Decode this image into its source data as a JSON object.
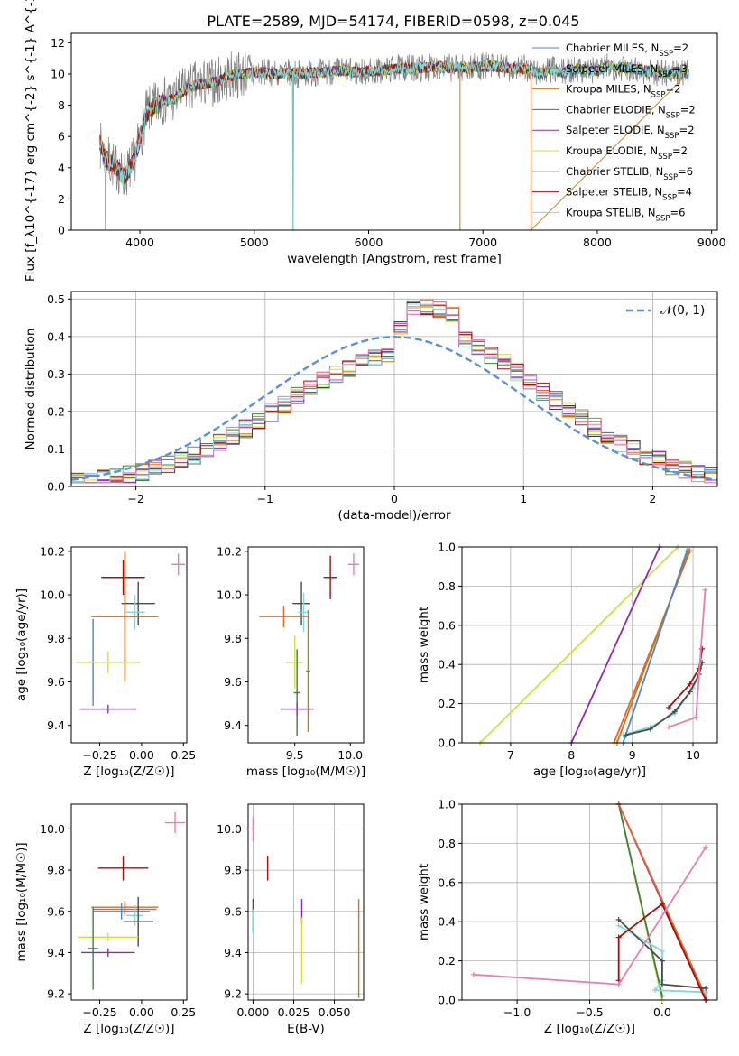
{
  "figure": {
    "title": "PLATE=2589, MJD=54174, FIBERID=0598, z=0.045"
  },
  "colors": {
    "Chabrier MILES": "#4f86c6",
    "Salpeter MILES": "#e26a2c",
    "Kroupa MILES": "#c27a1e",
    "Chabrier ELODIE": "#3f7f3f",
    "Salpeter ELODIE": "#8e2ab0",
    "Kroupa ELODIE": "#cfe03a",
    "Chabrier STELIB": "#4a4a4a",
    "Salpeter STELIB": "#a50f0f",
    "Kroupa STELIB": "#7fd8dc",
    "pink": "#e57fb3",
    "gray_data": "#7f7f7f",
    "normal_curve": "#5b8fd6"
  },
  "chart_data": [
    {
      "id": "spectrum",
      "type": "line",
      "xlabel": "wavelength [Angstrom, rest frame]",
      "ylabel": "Flux [f_λ10^{-17} erg cm^{-2} s^{-1} A^{-1}]",
      "xlim": [
        3400,
        9050
      ],
      "ylim": [
        0,
        12.6
      ],
      "xticks": [
        4000,
        5000,
        6000,
        7000,
        8000,
        9000
      ],
      "yticks": [
        0,
        2,
        4,
        6,
        8,
        10,
        12
      ],
      "legend": [
        {
          "label": "Chabrier MILES, N",
          "sub": "SSP",
          "tail": "=2",
          "color": "#4f86c6"
        },
        {
          "label": "Salpeter MILES, N",
          "sub": "SSP",
          "tail": "=3",
          "color": "#e26a2c"
        },
        {
          "label": "Kroupa MILES, N",
          "sub": "SSP",
          "tail": "=2",
          "color": "#c27a1e"
        },
        {
          "label": "Chabrier ELODIE, N",
          "sub": "SSP",
          "tail": "=2",
          "color": "#3f7f3f"
        },
        {
          "label": "Salpeter ELODIE, N",
          "sub": "SSP",
          "tail": "=2",
          "color": "#8e2ab0"
        },
        {
          "label": "Kroupa ELODIE, N",
          "sub": "SSP",
          "tail": "=2",
          "color": "#cfe03a"
        },
        {
          "label": "Chabrier STELIB, N",
          "sub": "SSP",
          "tail": "=6",
          "color": "#4a4a4a"
        },
        {
          "label": "Salpeter STELIB, N",
          "sub": "SSP",
          "tail": "=4",
          "color": "#a50f0f"
        },
        {
          "label": "Kroupa STELIB, N",
          "sub": "SSP",
          "tail": "=6",
          "color": "#7fd8dc"
        }
      ],
      "continuum": [
        [
          3650,
          5.5
        ],
        [
          3700,
          4.6
        ],
        [
          3750,
          4.3
        ],
        [
          3800,
          4.0
        ],
        [
          3850,
          3.4
        ],
        [
          3900,
          3.8
        ],
        [
          3950,
          4.5
        ],
        [
          4000,
          5.8
        ],
        [
          4050,
          7.3
        ],
        [
          4100,
          7.8
        ],
        [
          4150,
          8.0
        ],
        [
          4200,
          8.3
        ],
        [
          4300,
          8.4
        ],
        [
          4400,
          9.0
        ],
        [
          4500,
          9.3
        ],
        [
          4600,
          9.4
        ],
        [
          4700,
          9.6
        ],
        [
          4800,
          9.9
        ],
        [
          4900,
          10.0
        ],
        [
          5000,
          10.1
        ],
        [
          5100,
          10.1
        ],
        [
          5200,
          10.0
        ],
        [
          5300,
          10.1
        ],
        [
          5400,
          10.0
        ],
        [
          5500,
          10.1
        ],
        [
          5600,
          10.1
        ],
        [
          5700,
          10.2
        ],
        [
          5800,
          10.2
        ],
        [
          5900,
          10.1
        ],
        [
          6000,
          10.2
        ],
        [
          6100,
          10.2
        ],
        [
          6200,
          10.3
        ],
        [
          6300,
          10.4
        ],
        [
          6400,
          10.4
        ],
        [
          6500,
          10.4
        ],
        [
          6600,
          10.5
        ],
        [
          6700,
          10.4
        ],
        [
          6800,
          10.4
        ],
        [
          6900,
          10.4
        ],
        [
          7000,
          10.5
        ],
        [
          7100,
          10.5
        ],
        [
          7200,
          10.4
        ],
        [
          7300,
          10.4
        ],
        [
          7400,
          10.3
        ],
        [
          7500,
          10.0
        ],
        [
          7600,
          10.3
        ],
        [
          7700,
          10.1
        ],
        [
          7800,
          10.3
        ],
        [
          7900,
          10.3
        ],
        [
          8000,
          10.2
        ],
        [
          8100,
          10.5
        ],
        [
          8200,
          10.4
        ],
        [
          8300,
          10.4
        ],
        [
          8400,
          10.2
        ],
        [
          8500,
          10.1
        ],
        [
          8600,
          10.1
        ],
        [
          8700,
          10.0
        ],
        [
          8800,
          10.0
        ]
      ]
    },
    {
      "id": "residuals",
      "type": "histogram",
      "xlabel": "(data-model)/error",
      "ylabel": "Normed distribution",
      "xlim": [
        -2.5,
        2.5
      ],
      "ylim": [
        0,
        0.52
      ],
      "xticks": [
        -2,
        -1,
        0,
        1,
        2
      ],
      "yticks": [
        0.0,
        0.1,
        0.2,
        0.3,
        0.4,
        0.5
      ],
      "legend": "𝒩(0, 1)",
      "series_colors": [
        "#4f86c6",
        "#e26a2c",
        "#c27a1e",
        "#3f7f3f",
        "#8e2ab0",
        "#cfe03a",
        "#4a4a4a",
        "#a50f0f",
        "#7fd8dc",
        "#e57fb3"
      ]
    },
    {
      "id": "age_vs_Z",
      "type": "errorbar",
      "xlabel": "Z [log₁₀(Z/Z☉)]",
      "ylabel": "age  [log₁₀(age/yr)]",
      "xlim": [
        -0.42,
        0.27
      ],
      "ylim": [
        9.32,
        10.22
      ],
      "xticks": [
        -0.25,
        0.0,
        0.25
      ],
      "yticks": [
        9.4,
        9.6,
        9.8,
        10.0,
        10.2
      ],
      "points": [
        {
          "x": 0.22,
          "y": 10.14,
          "xerr": 0.04,
          "yerr": 0.05,
          "color": "#e57fb3"
        },
        {
          "x": -0.11,
          "y": 10.08,
          "xerr": 0.13,
          "yerr": 0.08,
          "color": "#a50f0f"
        },
        {
          "x": -0.02,
          "y": 9.96,
          "xerr": 0.1,
          "yerr": 0.1,
          "color": "#4a4a4a"
        },
        {
          "x": -0.04,
          "y": 9.92,
          "xerr": 0.06,
          "yerr": 0.08,
          "color": "#7fd8dc"
        },
        {
          "x": -0.1,
          "y": 9.9,
          "xerr": 0.2,
          "yerr": 0.3,
          "color": "#c27a1e"
        },
        {
          "x": -0.1,
          "y": 9.9,
          "xerr": 0.19,
          "yerr": 0.29,
          "color": "#e26a2c"
        },
        {
          "x": -0.29,
          "y": 9.69,
          "xerr": 0.02,
          "yerr": 0.2,
          "color": "#4f86c6"
        },
        {
          "x": -0.2,
          "y": 9.69,
          "xerr": 0.19,
          "yerr": 0.05,
          "color": "#cfe03a"
        },
        {
          "x": -0.2,
          "y": 9.475,
          "xerr": 0.17,
          "yerr": 0.02,
          "color": "#8e2ab0"
        }
      ]
    },
    {
      "id": "age_vs_mass",
      "type": "errorbar",
      "xlabel": "mass [log₁₀(M/M☉)]",
      "ylabel": "",
      "xlim": [
        9.08,
        10.12
      ],
      "ylim": [
        9.32,
        10.22
      ],
      "xticks": [
        9.5,
        10.0
      ],
      "yticks": [
        9.4,
        9.6,
        9.8,
        10.0,
        10.2
      ],
      "points": [
        {
          "x": 10.03,
          "y": 10.14,
          "xerr": 0.05,
          "yerr": 0.05,
          "color": "#e57fb3"
        },
        {
          "x": 9.82,
          "y": 10.08,
          "xerr": 0.06,
          "yerr": 0.1,
          "color": "#a50f0f"
        },
        {
          "x": 9.56,
          "y": 9.96,
          "xerr": 0.08,
          "yerr": 0.1,
          "color": "#4a4a4a"
        },
        {
          "x": 9.58,
          "y": 9.92,
          "xerr": 0.05,
          "yerr": 0.09,
          "color": "#7fd8dc"
        },
        {
          "x": 9.4,
          "y": 9.9,
          "xerr": 0.22,
          "yerr": 0.05,
          "color": "#e26a2c"
        },
        {
          "x": 9.62,
          "y": 9.65,
          "xerr": 0.02,
          "yerr": 0.28,
          "color": "#c27a1e"
        },
        {
          "x": 9.5,
          "y": 9.69,
          "xerr": 0.08,
          "yerr": 0.12,
          "color": "#cfe03a"
        },
        {
          "x": 9.52,
          "y": 9.55,
          "xerr": 0.03,
          "yerr": 0.2,
          "color": "#3f7f3f"
        },
        {
          "x": 9.52,
          "y": 9.475,
          "xerr": 0.15,
          "yerr": 0.03,
          "color": "#8e2ab0"
        }
      ]
    },
    {
      "id": "mass_weight_vs_age",
      "type": "line",
      "xlabel": "age  [log₁₀(age/yr)]",
      "ylabel": "mass weight",
      "xlim": [
        6.2,
        10.4
      ],
      "ylim": [
        0,
        1
      ],
      "xticks": [
        7,
        8,
        9,
        10
      ],
      "yticks": [
        0.0,
        0.2,
        0.4,
        0.6,
        0.8,
        1.0
      ],
      "series": [
        {
          "color": "#cfe03a",
          "points": [
            [
              6.5,
              0.0
            ],
            [
              9.75,
              1.0
            ]
          ]
        },
        {
          "color": "#8e2ab0",
          "points": [
            [
              8.0,
              0.0
            ],
            [
              9.45,
              1.0
            ]
          ]
        },
        {
          "color": "#e26a2c",
          "points": [
            [
              8.7,
              0.0
            ],
            [
              9.95,
              0.98
            ]
          ]
        },
        {
          "color": "#c27a1e",
          "points": [
            [
              8.75,
              0.0
            ],
            [
              9.93,
              0.98
            ]
          ]
        },
        {
          "color": "#4f86c6",
          "points": [
            [
              8.85,
              0.0
            ],
            [
              9.9,
              0.98
            ]
          ]
        },
        {
          "color": "#7fd8dc",
          "points": [
            [
              8.85,
              0.04
            ],
            [
              9.3,
              0.08
            ],
            [
              9.7,
              0.15
            ],
            [
              10.0,
              0.28
            ],
            [
              10.1,
              0.35
            ]
          ]
        },
        {
          "color": "#4a4a4a",
          "points": [
            [
              8.9,
              0.04
            ],
            [
              9.3,
              0.07
            ],
            [
              9.7,
              0.16
            ],
            [
              9.95,
              0.26
            ],
            [
              10.1,
              0.35
            ],
            [
              10.15,
              0.41
            ]
          ]
        },
        {
          "color": "#a50f0f",
          "points": [
            [
              9.6,
              0.18
            ],
            [
              9.95,
              0.3
            ],
            [
              10.1,
              0.38
            ],
            [
              10.15,
              0.48
            ]
          ]
        },
        {
          "color": "#e57fb3",
          "points": [
            [
              9.6,
              0.08
            ],
            [
              10.05,
              0.13
            ],
            [
              10.2,
              0.78
            ]
          ]
        }
      ]
    },
    {
      "id": "mass_vs_Z",
      "type": "errorbar",
      "xlabel": "Z [log₁₀(Z/Z☉)]",
      "ylabel": "mass [log₁₀(M/M☉)]",
      "xlim": [
        -0.42,
        0.27
      ],
      "ylim": [
        9.17,
        10.12
      ],
      "xticks": [
        -0.25,
        0.0,
        0.25
      ],
      "yticks": [
        9.2,
        9.4,
        9.6,
        9.8,
        10.0
      ],
      "points": [
        {
          "x": 0.2,
          "y": 10.03,
          "xerr": 0.06,
          "yerr": 0.05,
          "color": "#e57fb3"
        },
        {
          "x": -0.11,
          "y": 9.81,
          "xerr": 0.15,
          "yerr": 0.06,
          "color": "#a50f0f"
        },
        {
          "x": -0.1,
          "y": 9.62,
          "xerr": 0.2,
          "yerr": 0.03,
          "color": "#c27a1e"
        },
        {
          "x": -0.1,
          "y": 9.61,
          "xerr": 0.19,
          "yerr": 0.03,
          "color": "#e26a2c"
        },
        {
          "x": -0.12,
          "y": 9.6,
          "xerr": 0.17,
          "yerr": 0.04,
          "color": "#4f86c6"
        },
        {
          "x": -0.04,
          "y": 9.58,
          "xerr": 0.05,
          "yerr": 0.05,
          "color": "#7fd8dc"
        },
        {
          "x": -0.02,
          "y": 9.55,
          "xerr": 0.09,
          "yerr": 0.12,
          "color": "#4a4a4a"
        },
        {
          "x": -0.2,
          "y": 9.475,
          "xerr": 0.18,
          "yerr": 0.02,
          "color": "#cfe03a"
        },
        {
          "x": -0.29,
          "y": 9.42,
          "xerr": 0.03,
          "yerr": 0.2,
          "color": "#3f7f3f"
        },
        {
          "x": -0.2,
          "y": 9.4,
          "xerr": 0.16,
          "yerr": 0.02,
          "color": "#8e2ab0"
        }
      ]
    },
    {
      "id": "mass_vs_ebv",
      "type": "errorbar",
      "xlabel": "E(B-V)",
      "ylabel": "",
      "xlim": [
        -0.003,
        0.068
      ],
      "ylim": [
        9.17,
        10.12
      ],
      "xticks": [
        0.0,
        0.025,
        0.05
      ],
      "xticklabels": [
        "0.000",
        "0.025",
        "0.050"
      ],
      "yticks": [
        9.2,
        9.4,
        9.6,
        9.8,
        10.0
      ],
      "points": [
        {
          "x": 0.0,
          "y": 10.0,
          "xerr": 0,
          "yerr": 0.06,
          "color": "#e57fb3"
        },
        {
          "x": 0.009,
          "y": 9.81,
          "xerr": 0,
          "yerr": 0.06,
          "color": "#a50f0f"
        },
        {
          "x": 0.0,
          "y": 9.58,
          "xerr": 0,
          "yerr": 0.08,
          "color": "#4a4a4a"
        },
        {
          "x": 0.0,
          "y": 9.55,
          "xerr": 0,
          "yerr": 0.06,
          "color": "#7fd8dc"
        },
        {
          "x": 0.03,
          "y": 9.6,
          "xerr": 0,
          "yerr": 0.06,
          "color": "#8e2ab0"
        },
        {
          "x": 0.03,
          "y": 9.41,
          "xerr": 0,
          "yerr": 0.16,
          "color": "#cfe03a"
        },
        {
          "x": 0.065,
          "y": 9.42,
          "xerr": 0,
          "yerr": 0.24,
          "color": "#c27a1e"
        }
      ]
    },
    {
      "id": "mass_weight_vs_Z",
      "type": "line",
      "xlabel": "Z [log₁₀(Z/Z☉)]",
      "ylabel": "mass weight",
      "xlim": [
        -1.38,
        0.38
      ],
      "ylim": [
        0,
        1
      ],
      "xticks": [
        -1.0,
        -0.5,
        0.0
      ],
      "yticks": [
        0.0,
        0.2,
        0.4,
        0.6,
        0.8,
        1.0
      ],
      "series": [
        {
          "color": "#cfe03a",
          "points": [
            [
              -0.3,
              1.0
            ],
            [
              0.0,
              0.0
            ]
          ]
        },
        {
          "color": "#3f7f3f",
          "points": [
            [
              -0.3,
              1.0
            ],
            [
              0.0,
              0.02
            ]
          ]
        },
        {
          "color": "#8e2ab0",
          "points": [
            [
              -0.3,
              1.0
            ],
            [
              0.3,
              0.0
            ]
          ]
        },
        {
          "color": "#e26a2c",
          "points": [
            [
              -0.3,
              1.0
            ],
            [
              0.3,
              0.02
            ]
          ]
        },
        {
          "color": "#7fd8dc",
          "points": [
            [
              -0.3,
              0.38
            ],
            [
              0.0,
              0.25
            ],
            [
              0.0,
              0.1
            ],
            [
              -0.05,
              0.05
            ],
            [
              0.3,
              0.04
            ]
          ]
        },
        {
          "color": "#4a4a4a",
          "points": [
            [
              -0.3,
              0.41
            ],
            [
              0.0,
              0.2
            ],
            [
              0.0,
              0.08
            ],
            [
              0.3,
              0.06
            ]
          ]
        },
        {
          "color": "#a50f0f",
          "points": [
            [
              -0.3,
              0.1
            ],
            [
              -0.3,
              0.32
            ],
            [
              0.0,
              0.49
            ],
            [
              0.3,
              0.0
            ]
          ]
        },
        {
          "color": "#e57fb3",
          "points": [
            [
              -1.3,
              0.13
            ],
            [
              -0.3,
              0.08
            ],
            [
              0.3,
              0.78
            ]
          ]
        }
      ]
    }
  ]
}
